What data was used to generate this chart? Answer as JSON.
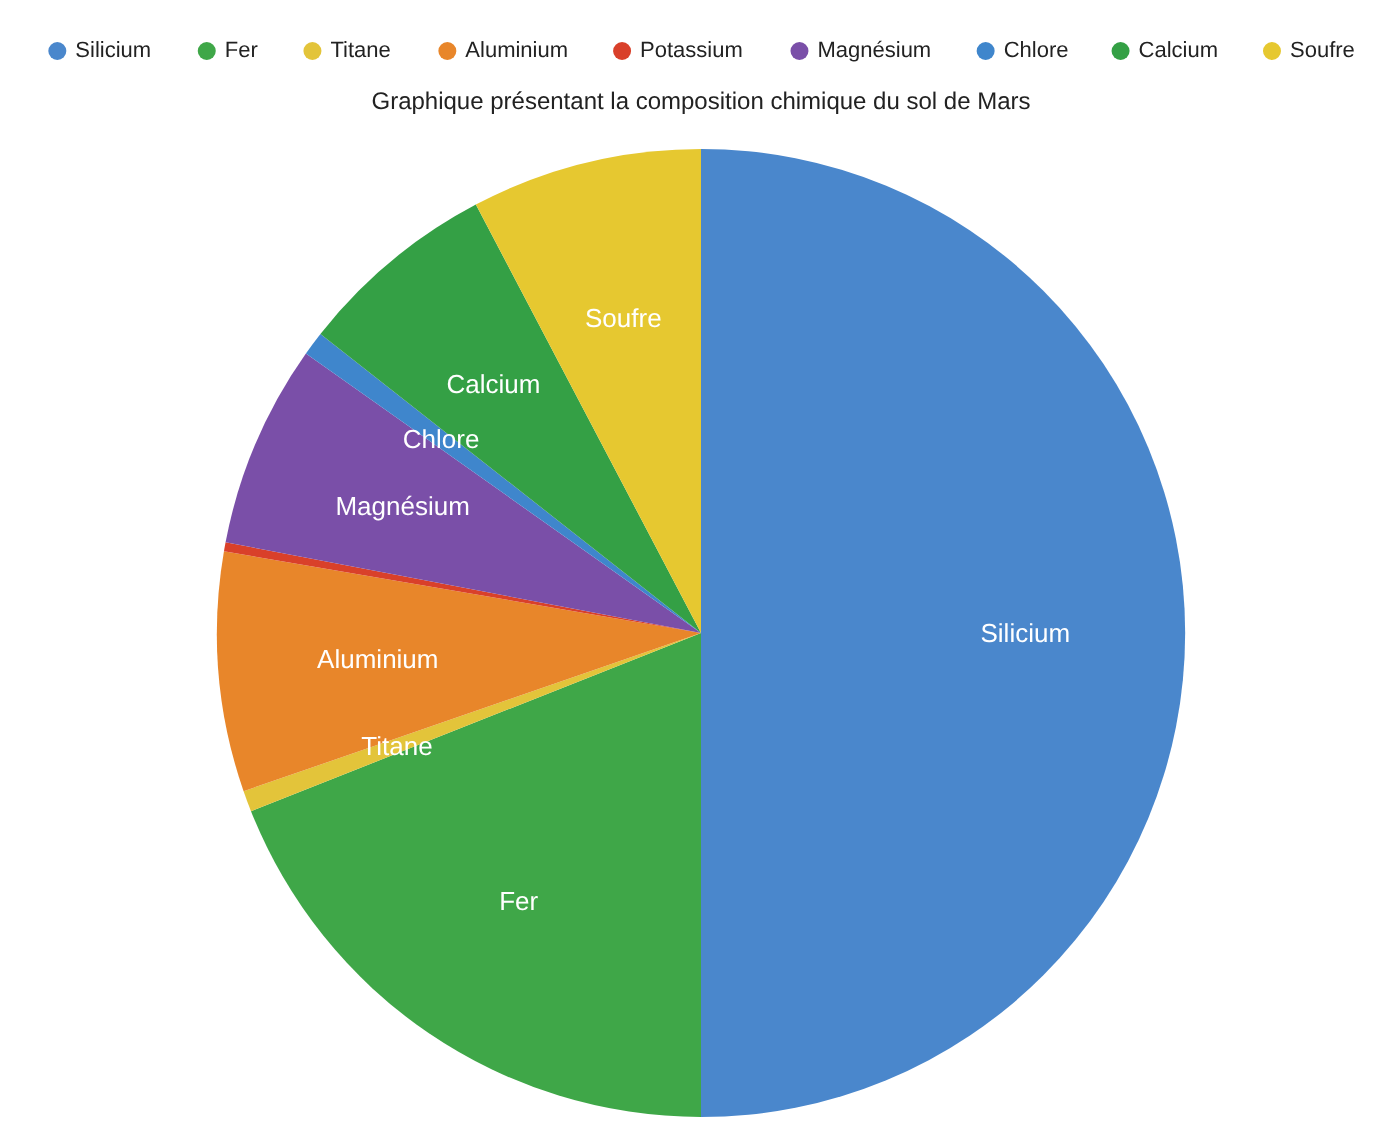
{
  "chart_data": {
    "type": "pie",
    "title": "Graphique présentant la composition chimique du sol de Mars",
    "categories": [
      "Silicium",
      "Fer",
      "Titane",
      "Aluminium",
      "Potassium",
      "Magnésium",
      "Chlore",
      "Calcium",
      "Soufre"
    ],
    "values": [
      50,
      19,
      0.7,
      8,
      0.3,
      6.8,
      0.8,
      6.7,
      7.7
    ],
    "colors": [
      "#4a87cc",
      "#3fa748",
      "#e3c43a",
      "#e8862a",
      "#d9402a",
      "#7a4fa8",
      "#3f86cc",
      "#34a045",
      "#e6c830"
    ],
    "legend": "top"
  }
}
